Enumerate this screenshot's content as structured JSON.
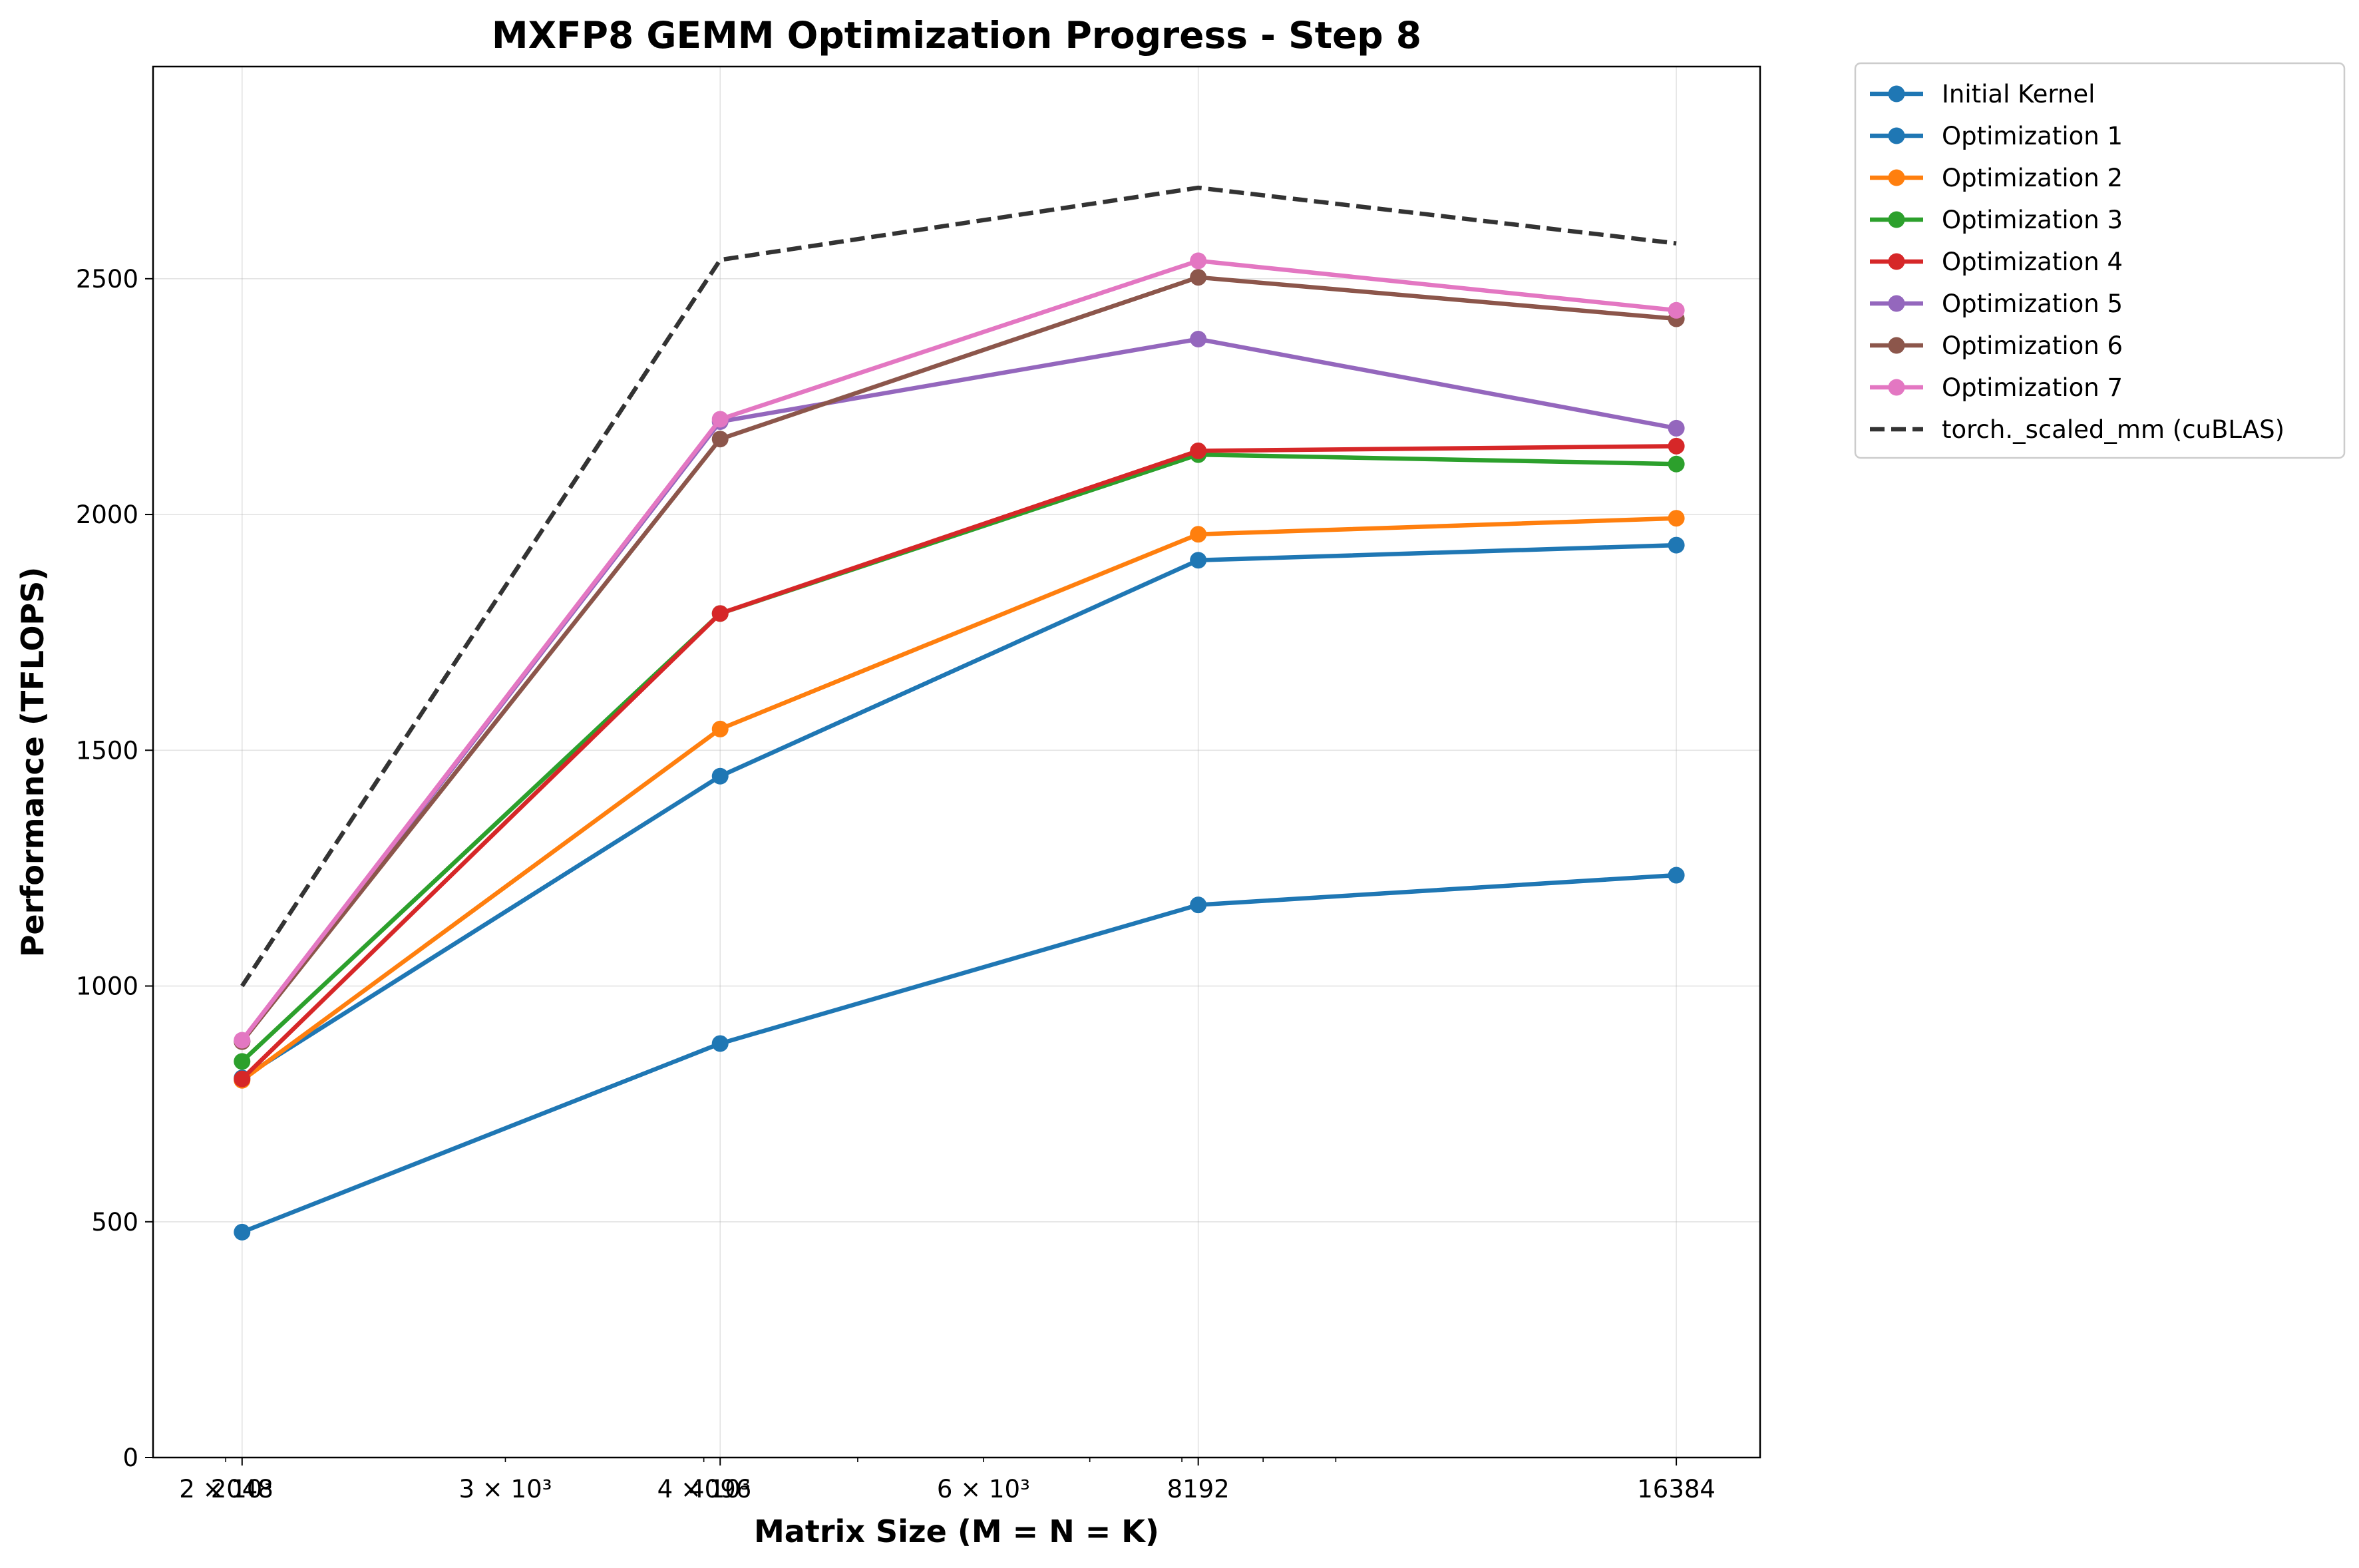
{
  "chart_data": {
    "type": "line",
    "title": "MXFP8 GEMM Optimization Progress - Step 8",
    "xlabel": "Matrix Size (M = N = K)",
    "ylabel": "Performance (TFLOPS)",
    "x_scale": "log",
    "x": [
      2048,
      4096,
      8192,
      16384
    ],
    "x_tick_labels": [
      "2048",
      "4096",
      "8192",
      "16384"
    ],
    "x_minor_tick_labels": [
      {
        "value": 2000,
        "label": "2 × 10³"
      },
      {
        "value": 3000,
        "label": "3 × 10³"
      },
      {
        "value": 4000,
        "label": "4 × 10³"
      },
      {
        "value": 6000,
        "label": "6 × 10³"
      }
    ],
    "xlim": [
      1800,
      18500
    ],
    "ylim": [
      0,
      2950
    ],
    "y_ticks": [
      0,
      500,
      1000,
      1500,
      2000,
      2500
    ],
    "grid": true,
    "legend_position": "outside-top-right",
    "series": [
      {
        "name": "Initial Kernel",
        "color": "#1f77b4",
        "style": "solid",
        "marker": "circle",
        "values": [
          478,
          878,
          1172,
          1235
        ]
      },
      {
        "name": "Optimization 1",
        "color": "#1f77b4",
        "style": "solid",
        "marker": "circle",
        "values": [
          805,
          1445,
          1903,
          1935
        ]
      },
      {
        "name": "Optimization 2",
        "color": "#ff7f0e",
        "style": "solid",
        "marker": "circle",
        "values": [
          800,
          1545,
          1958,
          1992
        ]
      },
      {
        "name": "Optimization 3",
        "color": "#2ca02c",
        "style": "solid",
        "marker": "circle",
        "values": [
          840,
          1790,
          2127,
          2107
        ]
      },
      {
        "name": "Optimization 4",
        "color": "#d62728",
        "style": "solid",
        "marker": "circle",
        "values": [
          803,
          1790,
          2135,
          2145
        ]
      },
      {
        "name": "Optimization 5",
        "color": "#9467bd",
        "style": "solid",
        "marker": "circle",
        "values": [
          883,
          2197,
          2372,
          2183
        ]
      },
      {
        "name": "Optimization 6",
        "color": "#8c564b",
        "style": "solid",
        "marker": "circle",
        "values": [
          882,
          2160,
          2503,
          2415
        ]
      },
      {
        "name": "Optimization 7",
        "color": "#e377c2",
        "style": "solid",
        "marker": "circle",
        "values": [
          885,
          2202,
          2538,
          2433
        ]
      },
      {
        "name": "torch._scaled_mm (cuBLAS)",
        "color": "#333333",
        "style": "dashed",
        "marker": "none",
        "values": [
          1000,
          2540,
          2693,
          2575
        ]
      }
    ]
  }
}
